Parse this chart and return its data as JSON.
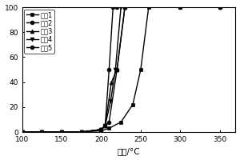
{
  "xlabel": "温度/°C",
  "xlim": [
    100,
    370
  ],
  "ylim": [
    0,
    100
  ],
  "xticks": [
    100,
    150,
    200,
    250,
    300,
    350
  ],
  "yticks": [
    0,
    20,
    40,
    60,
    80,
    100
  ],
  "series": [
    {
      "label": "实例1",
      "marker": "s",
      "x": [
        100,
        125,
        150,
        175,
        200,
        210,
        225,
        240,
        250,
        260,
        300,
        350
      ],
      "y": [
        0,
        0,
        0,
        0,
        1,
        3,
        8,
        22,
        50,
        100,
        100,
        100
      ]
    },
    {
      "label": "实例2",
      "marker": "o",
      "x": [
        100,
        125,
        150,
        175,
        200,
        210,
        220,
        230,
        300,
        350
      ],
      "y": [
        0,
        0,
        0,
        0,
        2,
        8,
        50,
        100,
        100,
        100
      ]
    },
    {
      "label": "实例3",
      "marker": "^",
      "x": [
        100,
        125,
        150,
        175,
        200,
        205,
        213,
        220,
        230
      ],
      "y": [
        0,
        0,
        0,
        0,
        2,
        5,
        40,
        50,
        100
      ]
    },
    {
      "label": "实例4",
      "marker": "v",
      "x": [
        100,
        125,
        150,
        175,
        200,
        205,
        212,
        218,
        225
      ],
      "y": [
        0,
        0,
        0,
        0,
        2,
        5,
        25,
        50,
        100
      ]
    },
    {
      "label": "实例5",
      "marker": "o",
      "x": [
        100,
        125,
        150,
        175,
        200,
        205,
        210,
        215,
        220,
        350
      ],
      "y": [
        0,
        0,
        0,
        0,
        2,
        5,
        50,
        100,
        100,
        100
      ]
    }
  ],
  "color": "#000000",
  "background": "#ffffff",
  "linewidth": 1.0,
  "markersize": 3.5
}
